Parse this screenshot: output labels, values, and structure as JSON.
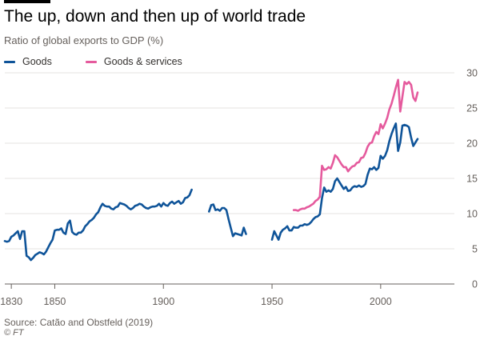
{
  "title": "The up, down and then up of world trade",
  "subtitle": "Ratio of global exports to GDP (%)",
  "source": "Source: Catão and Obstfeld (2019)",
  "credit": "© FT",
  "colors": {
    "goods": "#0f5499",
    "goods_services": "#e55a9d",
    "grid": "#e6e3e0",
    "axis": "#66605c"
  },
  "legend": [
    {
      "name": "Goods",
      "color": "#0f5499"
    },
    {
      "name": "Goods & services",
      "color": "#e55a9d"
    }
  ],
  "chart_data": {
    "type": "line",
    "title": "The up, down and then up of world trade",
    "ylabel": "Ratio of global exports to GDP (%)",
    "xlabel": "",
    "xlim": [
      1827,
      2017
    ],
    "ylim": [
      0,
      30
    ],
    "y_ticks": [
      0,
      5,
      10,
      15,
      20,
      25,
      30
    ],
    "x_ticks": [
      1830,
      1850,
      1900,
      1950,
      2000
    ],
    "x_tick_labels": [
      "1830",
      "1850",
      "1900",
      "1950",
      "2000"
    ],
    "legend_position": "top-left",
    "y_axis_position": "right",
    "grid": true,
    "series": [
      {
        "name": "Goods",
        "color": "#0f5499",
        "segments": [
          [
            [
              1827,
              6.1
            ],
            [
              1828,
              6.0
            ],
            [
              1829,
              6.1
            ],
            [
              1830,
              6.7
            ],
            [
              1831,
              6.9
            ],
            [
              1832,
              7.2
            ],
            [
              1833,
              7.5
            ],
            [
              1834,
              6.4
            ],
            [
              1835,
              7.5
            ],
            [
              1836,
              7.5
            ],
            [
              1837,
              4.0
            ],
            [
              1838,
              3.8
            ],
            [
              1839,
              3.4
            ],
            [
              1840,
              3.7
            ],
            [
              1841,
              4.1
            ],
            [
              1842,
              4.3
            ],
            [
              1843,
              4.5
            ],
            [
              1844,
              4.4
            ],
            [
              1845,
              4.2
            ],
            [
              1846,
              4.6
            ],
            [
              1847,
              5.2
            ],
            [
              1848,
              5.8
            ],
            [
              1849,
              6.3
            ],
            [
              1850,
              7.6
            ],
            [
              1851,
              7.7
            ],
            [
              1852,
              7.7
            ],
            [
              1853,
              7.9
            ],
            [
              1854,
              7.3
            ],
            [
              1855,
              7.1
            ],
            [
              1856,
              8.6
            ],
            [
              1857,
              9.0
            ],
            [
              1858,
              7.4
            ],
            [
              1859,
              7.1
            ],
            [
              1860,
              7.0
            ],
            [
              1861,
              7.3
            ],
            [
              1862,
              7.3
            ],
            [
              1863,
              7.6
            ],
            [
              1864,
              8.2
            ],
            [
              1865,
              8.5
            ],
            [
              1866,
              8.9
            ],
            [
              1867,
              9.1
            ],
            [
              1868,
              9.4
            ],
            [
              1869,
              9.9
            ],
            [
              1870,
              10.2
            ],
            [
              1871,
              10.9
            ],
            [
              1872,
              11.4
            ],
            [
              1873,
              11.1
            ],
            [
              1874,
              11.0
            ],
            [
              1875,
              11.0
            ],
            [
              1876,
              10.7
            ],
            [
              1877,
              10.6
            ],
            [
              1878,
              10.9
            ],
            [
              1879,
              11.0
            ],
            [
              1880,
              11.5
            ],
            [
              1881,
              11.4
            ],
            [
              1882,
              11.3
            ],
            [
              1883,
              11.1
            ],
            [
              1884,
              10.8
            ],
            [
              1885,
              10.6
            ],
            [
              1886,
              10.8
            ],
            [
              1887,
              11.1
            ],
            [
              1888,
              11.2
            ],
            [
              1889,
              11.4
            ],
            [
              1890,
              11.3
            ],
            [
              1891,
              11.0
            ],
            [
              1892,
              10.8
            ],
            [
              1893,
              10.7
            ],
            [
              1894,
              10.9
            ],
            [
              1895,
              11.0
            ],
            [
              1896,
              11.0
            ],
            [
              1897,
              11.1
            ],
            [
              1898,
              11.4
            ],
            [
              1899,
              11.0
            ],
            [
              1900,
              11.5
            ],
            [
              1901,
              11.2
            ],
            [
              1902,
              11.1
            ],
            [
              1903,
              11.5
            ],
            [
              1904,
              11.7
            ],
            [
              1905,
              11.4
            ],
            [
              1906,
              11.6
            ],
            [
              1907,
              11.8
            ],
            [
              1908,
              11.4
            ],
            [
              1909,
              11.6
            ],
            [
              1910,
              12.2
            ],
            [
              1911,
              12.3
            ],
            [
              1912,
              12.6
            ],
            [
              1913,
              13.4
            ]
          ],
          [
            [
              1921,
              10.3
            ],
            [
              1922,
              11.2
            ],
            [
              1923,
              11.3
            ],
            [
              1924,
              10.5
            ],
            [
              1925,
              10.6
            ],
            [
              1926,
              10.4
            ],
            [
              1927,
              10.8
            ],
            [
              1928,
              10.8
            ],
            [
              1929,
              10.5
            ],
            [
              1930,
              9.2
            ],
            [
              1931,
              8.0
            ],
            [
              1932,
              6.8
            ],
            [
              1933,
              7.2
            ],
            [
              1934,
              7.1
            ],
            [
              1935,
              7.0
            ],
            [
              1936,
              6.9
            ],
            [
              1937,
              8.0
            ],
            [
              1938,
              7.1
            ]
          ],
          [
            [
              1950,
              6.3
            ],
            [
              1951,
              7.5
            ],
            [
              1952,
              6.9
            ],
            [
              1953,
              6.3
            ],
            [
              1954,
              7.3
            ],
            [
              1955,
              7.7
            ],
            [
              1956,
              7.9
            ],
            [
              1957,
              8.2
            ],
            [
              1958,
              7.6
            ],
            [
              1959,
              7.6
            ],
            [
              1960,
              8.1
            ],
            [
              1961,
              8.0
            ],
            [
              1962,
              8.0
            ],
            [
              1963,
              8.3
            ],
            [
              1964,
              8.3
            ],
            [
              1965,
              8.5
            ],
            [
              1966,
              8.4
            ],
            [
              1967,
              8.5
            ],
            [
              1968,
              8.8
            ],
            [
              1969,
              9.2
            ],
            [
              1970,
              9.5
            ],
            [
              1971,
              9.6
            ],
            [
              1972,
              9.9
            ],
            [
              1973,
              12.2
            ],
            [
              1974,
              13.7
            ],
            [
              1975,
              13.1
            ],
            [
              1976,
              13.3
            ],
            [
              1977,
              13.1
            ],
            [
              1978,
              13.5
            ],
            [
              1979,
              14.6
            ],
            [
              1980,
              15.0
            ],
            [
              1981,
              14.5
            ],
            [
              1982,
              14.0
            ],
            [
              1983,
              13.5
            ],
            [
              1984,
              13.8
            ],
            [
              1985,
              13.2
            ],
            [
              1986,
              13.3
            ],
            [
              1987,
              13.7
            ],
            [
              1988,
              13.9
            ],
            [
              1989,
              13.8
            ],
            [
              1990,
              14.0
            ],
            [
              1991,
              13.8
            ],
            [
              1992,
              13.9
            ],
            [
              1993,
              14.2
            ],
            [
              1994,
              15.5
            ],
            [
              1995,
              16.4
            ],
            [
              1996,
              16.3
            ],
            [
              1997,
              16.6
            ],
            [
              1998,
              16.2
            ],
            [
              1999,
              16.5
            ],
            [
              2000,
              18.2
            ],
            [
              2001,
              17.8
            ],
            [
              2002,
              18.2
            ],
            [
              2003,
              19.0
            ],
            [
              2004,
              20.3
            ],
            [
              2005,
              21.3
            ],
            [
              2006,
              22.1
            ],
            [
              2007,
              22.8
            ],
            [
              2008,
              18.9
            ],
            [
              2009,
              20.1
            ],
            [
              2010,
              22.5
            ],
            [
              2011,
              22.6
            ],
            [
              2012,
              22.5
            ],
            [
              2013,
              22.3
            ],
            [
              2014,
              20.8
            ],
            [
              2015,
              19.6
            ],
            [
              2016,
              20.1
            ],
            [
              2017,
              20.6
            ]
          ]
        ]
      },
      {
        "name": "Goods & services",
        "color": "#e55a9d",
        "segments": [
          [
            [
              1960,
              10.5
            ],
            [
              1961,
              10.5
            ],
            [
              1962,
              10.4
            ],
            [
              1963,
              10.6
            ],
            [
              1964,
              10.7
            ],
            [
              1965,
              10.7
            ],
            [
              1966,
              10.9
            ],
            [
              1967,
              11.0
            ],
            [
              1968,
              11.2
            ],
            [
              1969,
              11.4
            ],
            [
              1970,
              11.8
            ],
            [
              1971,
              12.0
            ],
            [
              1972,
              12.4
            ],
            [
              1973,
              16.8
            ],
            [
              1974,
              16.2
            ],
            [
              1975,
              16.3
            ],
            [
              1976,
              16.6
            ],
            [
              1977,
              16.4
            ],
            [
              1978,
              17.2
            ],
            [
              1979,
              18.3
            ],
            [
              1980,
              18.0
            ],
            [
              1981,
              17.5
            ],
            [
              1982,
              17.0
            ],
            [
              1983,
              16.6
            ],
            [
              1984,
              16.6
            ],
            [
              1985,
              16.0
            ],
            [
              1986,
              16.4
            ],
            [
              1987,
              16.7
            ],
            [
              1988,
              16.8
            ],
            [
              1989,
              17.2
            ],
            [
              1990,
              17.3
            ],
            [
              1991,
              17.9
            ],
            [
              1992,
              18.0
            ],
            [
              1993,
              18.6
            ],
            [
              1994,
              19.5
            ],
            [
              1995,
              20.0
            ],
            [
              1996,
              20.1
            ],
            [
              1997,
              21.0
            ],
            [
              1998,
              21.6
            ],
            [
              1999,
              21.3
            ],
            [
              2000,
              22.7
            ],
            [
              2001,
              22.1
            ],
            [
              2002,
              22.8
            ],
            [
              2003,
              23.6
            ],
            [
              2004,
              24.8
            ],
            [
              2005,
              25.6
            ],
            [
              2006,
              26.7
            ],
            [
              2007,
              27.9
            ],
            [
              2008,
              29.0
            ],
            [
              2009,
              24.5
            ],
            [
              2010,
              26.6
            ],
            [
              2011,
              28.7
            ],
            [
              2012,
              28.4
            ],
            [
              2013,
              28.7
            ],
            [
              2014,
              28.3
            ],
            [
              2015,
              26.5
            ],
            [
              2016,
              26.0
            ],
            [
              2017,
              27.2
            ]
          ]
        ]
      }
    ]
  }
}
